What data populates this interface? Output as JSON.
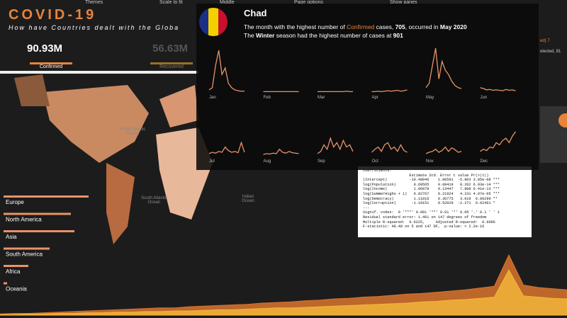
{
  "toolbar": [
    "Themes",
    "Scale to fit",
    "Middle",
    "Page options",
    "Show panes"
  ],
  "header": {
    "title": "COVID-19",
    "subtitle": "How have Countries dealt with the Globa"
  },
  "kpis": [
    {
      "value": "90.93M",
      "label": "Confirmed"
    },
    {
      "value": "56.63M",
      "label": "Recovered"
    }
  ],
  "map_labels": [
    "North Atlantic Ocean",
    "South Atlantic Ocean",
    "Indian Ocean"
  ],
  "continent_bars": {
    "categories": [
      "Europe",
      "North America",
      "Asia",
      "South America",
      "Africa",
      "Oceania"
    ],
    "values": [
      120,
      95,
      100,
      65,
      35,
      5
    ],
    "color": "#e8936a"
  },
  "tooltip": {
    "country": "Chad",
    "line1": [
      "The month with the highest number of ",
      "Confirmed",
      " cases, ",
      "705",
      ", occurred in ",
      "May 2020"
    ],
    "line2": [
      "The ",
      "Winter",
      " season had the highest number of cases at ",
      "901"
    ],
    "sparkline_color": "#e8936a",
    "months": [
      {
        "label": "Jan",
        "values": [
          5,
          10,
          60,
          95,
          40,
          55,
          20,
          10,
          5,
          3,
          2,
          2
        ]
      },
      {
        "label": "Feb",
        "values": [
          1,
          1,
          1,
          1,
          1,
          1,
          1,
          1,
          1,
          1,
          1,
          1
        ]
      },
      {
        "label": "Mar",
        "values": [
          1,
          1,
          1,
          1,
          1,
          1,
          1,
          1,
          1,
          2,
          1,
          1
        ]
      },
      {
        "label": "Apr",
        "values": [
          1,
          1,
          2,
          1,
          2,
          3,
          2,
          3,
          4,
          2,
          3,
          5
        ]
      },
      {
        "label": "May",
        "values": [
          10,
          20,
          60,
          100,
          30,
          70,
          50,
          40,
          25,
          15,
          10,
          8
        ]
      },
      {
        "label": "Jun",
        "values": [
          10,
          8,
          5,
          6,
          4,
          5,
          4,
          3,
          6,
          4,
          5,
          3
        ]
      },
      {
        "label": "Jul",
        "values": [
          5,
          8,
          6,
          10,
          8,
          20,
          12,
          8,
          10,
          7,
          30,
          8
        ]
      },
      {
        "label": "Aug",
        "values": [
          3,
          5,
          4,
          6,
          5,
          15,
          8,
          6,
          10,
          7,
          6,
          5
        ]
      },
      {
        "label": "Sep",
        "values": [
          5,
          10,
          25,
          15,
          40,
          20,
          30,
          15,
          35,
          20,
          25,
          10
        ]
      },
      {
        "label": "Oct",
        "values": [
          8,
          15,
          20,
          10,
          25,
          30,
          15,
          20,
          10,
          25,
          12,
          8
        ]
      },
      {
        "label": "Nov",
        "values": [
          5,
          8,
          10,
          15,
          8,
          12,
          20,
          10,
          18,
          14,
          8,
          10
        ]
      },
      {
        "label": "Dec",
        "values": [
          10,
          15,
          12,
          20,
          18,
          30,
          25,
          35,
          40,
          30,
          45,
          55
        ]
      }
    ]
  },
  "regression": {
    "lines": [
      "Coefficients:",
      "                     Estimate Std. Error t value Pr(>|t|)",
      "(Intercept)          -10.48046    1.80591  -5.803 3.85e-08 ***",
      "log(Population)        0.69565    0.08419   8.262 6.93e-14 ***",
      "log(Income)            1.06078    0.13447   7.888 6.41e-13 ***",
      "log(SummerHighs + 1)   0.92767    0.21924   4.231 4.07e-05 ***",
      "log(Democracy)         1.11016    0.36775   3.019  0.00299 **",
      "log(Corruption)       -1.18151    0.52029  -2.271  0.02461 *",
      "---",
      "Signif. codes:  0 '***' 0.001 '**' 0.01 '*' 0.05 '.' 0.1 ' ' 1",
      "Residual standard error: 1.461 on 147 degrees of freedom",
      "Multiple R-squared:  0.6225,     Adjusted R-squared:  0.6096",
      "F-statistic: 48.48 on 5 and 147 DF,  p-value: < 2.2e-16"
    ]
  },
  "side_texts": [
    "ed) 7",
    "elected, 81"
  ],
  "timeline": {
    "series": [
      {
        "color": "#d9742e",
        "values": [
          2,
          3,
          3,
          4,
          5,
          6,
          7,
          8,
          9,
          10,
          11,
          12,
          12,
          14,
          15,
          16,
          17,
          18,
          20,
          21,
          22,
          24,
          25,
          27,
          28,
          30,
          31,
          33,
          35,
          36,
          38,
          40,
          42,
          45,
          48,
          100,
          50,
          46,
          44,
          42
        ]
      },
      {
        "color": "#f2b53a",
        "values": [
          1,
          1,
          2,
          2,
          3,
          3,
          4,
          4,
          5,
          5,
          6,
          6,
          7,
          7,
          8,
          9,
          9,
          10,
          11,
          12,
          12,
          13,
          14,
          15,
          16,
          17,
          18,
          19,
          20,
          22,
          23,
          25,
          26,
          28,
          30,
          75,
          32,
          30,
          28,
          27
        ]
      }
    ]
  }
}
